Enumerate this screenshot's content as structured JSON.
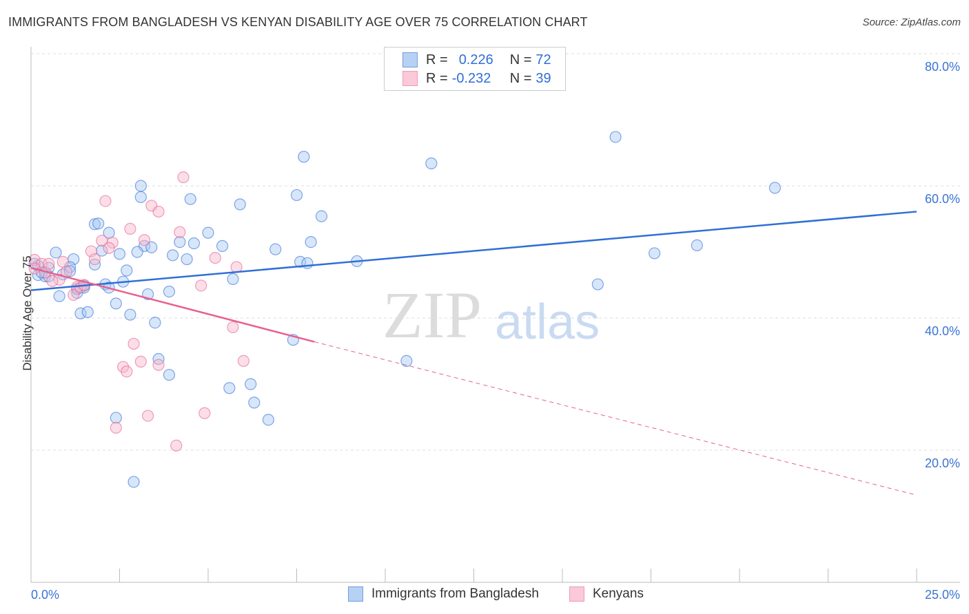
{
  "title": "IMMIGRANTS FROM BANGLADESH VS KENYAN DISABILITY AGE OVER 75 CORRELATION CHART",
  "source": "Source: ZipAtlas.com",
  "watermark": "ZIPatlas",
  "colors": {
    "blue": "#2f6fd6",
    "blue_fill": "#a9c8f3",
    "pink": "#e8608e",
    "pink_fill": "#f7b6ca"
  },
  "legend": {
    "rows": [
      {
        "r_label": "R =",
        "r": "0.226",
        "n_label": "N =",
        "n": "72"
      },
      {
        "r_label": "R =",
        "r": "-0.232",
        "n_label": "N =",
        "n": "39"
      }
    ]
  },
  "chart_data": {
    "type": "scatter",
    "title": "IMMIGRANTS FROM BANGLADESH VS KENYAN DISABILITY AGE OVER 75 CORRELATION CHART",
    "xlabel": "",
    "ylabel": "Disability Age Over 75",
    "xlim": [
      0,
      25
    ],
    "ylim": [
      0,
      80
    ],
    "x_tick_labels": [
      "0.0%",
      "25.0%"
    ],
    "y_ticks": [
      20,
      40,
      60,
      80
    ],
    "y_tick_labels": [
      "20.0%",
      "40.0%",
      "60.0%",
      "80.0%"
    ],
    "grid": true,
    "legend_position": "bottom",
    "series": [
      {
        "name": "Immigrants from Bangladesh",
        "color": "#2f6fd6",
        "trend": [
          [
            0,
            44.2
          ],
          [
            25,
            56.1
          ]
        ],
        "points": [
          [
            16.5,
            67.4
          ],
          [
            21.0,
            59.7
          ],
          [
            7.7,
            64.4
          ],
          [
            11.3,
            63.4
          ],
          [
            3.1,
            60.0
          ],
          [
            3.1,
            58.3
          ],
          [
            4.5,
            58.0
          ],
          [
            5.9,
            57.2
          ],
          [
            7.5,
            58.6
          ],
          [
            8.2,
            55.4
          ],
          [
            1.8,
            54.2
          ],
          [
            1.9,
            54.3
          ],
          [
            2.2,
            52.9
          ],
          [
            5.0,
            52.9
          ],
          [
            4.2,
            51.5
          ],
          [
            4.6,
            51.3
          ],
          [
            5.4,
            50.9
          ],
          [
            3.2,
            50.9
          ],
          [
            3.4,
            50.7
          ],
          [
            6.9,
            50.4
          ],
          [
            7.9,
            51.5
          ],
          [
            0.7,
            49.9
          ],
          [
            2.0,
            50.2
          ],
          [
            2.5,
            49.7
          ],
          [
            3.0,
            50.0
          ],
          [
            4.0,
            49.5
          ],
          [
            4.4,
            48.9
          ],
          [
            1.2,
            48.9
          ],
          [
            7.6,
            48.5
          ],
          [
            7.8,
            48.3
          ],
          [
            9.2,
            48.6
          ],
          [
            17.6,
            49.8
          ],
          [
            18.8,
            51.0
          ],
          [
            1.8,
            48.1
          ],
          [
            0.2,
            47.9
          ],
          [
            0.5,
            47.6
          ],
          [
            1.1,
            47.7
          ],
          [
            2.7,
            47.2
          ],
          [
            0.2,
            46.5
          ],
          [
            0.4,
            46.3
          ],
          [
            0.9,
            46.6
          ],
          [
            2.6,
            45.5
          ],
          [
            2.1,
            45.1
          ],
          [
            2.2,
            44.6
          ],
          [
            1.5,
            44.9
          ],
          [
            1.5,
            44.6
          ],
          [
            5.7,
            45.9
          ],
          [
            16.0,
            45.1
          ],
          [
            0.8,
            43.3
          ],
          [
            1.3,
            43.8
          ],
          [
            3.9,
            44.0
          ],
          [
            3.3,
            43.6
          ],
          [
            2.4,
            42.2
          ],
          [
            1.4,
            40.7
          ],
          [
            1.6,
            40.9
          ],
          [
            2.8,
            40.5
          ],
          [
            3.5,
            39.3
          ],
          [
            7.4,
            36.7
          ],
          [
            3.6,
            33.8
          ],
          [
            10.6,
            33.5
          ],
          [
            3.9,
            31.4
          ],
          [
            6.2,
            30.0
          ],
          [
            5.6,
            29.4
          ],
          [
            6.3,
            27.2
          ],
          [
            2.4,
            24.9
          ],
          [
            6.7,
            24.6
          ],
          [
            2.9,
            15.2
          ],
          [
            0.1,
            48.2
          ],
          [
            0.3,
            46.9
          ],
          [
            0.5,
            46.3
          ],
          [
            1.1,
            47.1
          ],
          [
            1.3,
            44.4
          ]
        ]
      },
      {
        "name": "Kenyans",
        "color": "#e8608e",
        "trend": [
          [
            0,
            47.6
          ],
          [
            8.0,
            36.4
          ]
        ],
        "trend_extrapolated": [
          [
            8.0,
            36.4
          ],
          [
            25,
            13.2
          ]
        ],
        "points": [
          [
            4.3,
            61.3
          ],
          [
            2.1,
            57.7
          ],
          [
            3.4,
            57.0
          ],
          [
            3.6,
            56.1
          ],
          [
            2.8,
            53.5
          ],
          [
            4.2,
            53.0
          ],
          [
            2.0,
            51.7
          ],
          [
            2.3,
            51.4
          ],
          [
            2.2,
            50.6
          ],
          [
            3.2,
            51.8
          ],
          [
            1.7,
            50.1
          ],
          [
            5.2,
            49.1
          ],
          [
            5.8,
            47.7
          ],
          [
            0.9,
            48.5
          ],
          [
            0.1,
            48.8
          ],
          [
            0.3,
            48.2
          ],
          [
            1.8,
            48.9
          ],
          [
            4.8,
            44.9
          ],
          [
            1.3,
            44.7
          ],
          [
            1.2,
            43.5
          ],
          [
            5.7,
            38.6
          ],
          [
            2.9,
            36.1
          ],
          [
            2.6,
            32.6
          ],
          [
            2.7,
            31.9
          ],
          [
            3.1,
            33.4
          ],
          [
            3.6,
            32.9
          ],
          [
            6.0,
            33.5
          ],
          [
            3.3,
            25.2
          ],
          [
            4.9,
            25.6
          ],
          [
            2.4,
            23.4
          ],
          [
            4.1,
            20.7
          ],
          [
            0.8,
            45.8
          ],
          [
            0.6,
            45.6
          ],
          [
            1.4,
            44.6
          ],
          [
            0.1,
            47.5
          ],
          [
            0.4,
            46.9
          ],
          [
            1.0,
            47.0
          ],
          [
            0.5,
            48.2
          ],
          [
            1.5,
            45.0
          ]
        ]
      }
    ]
  }
}
